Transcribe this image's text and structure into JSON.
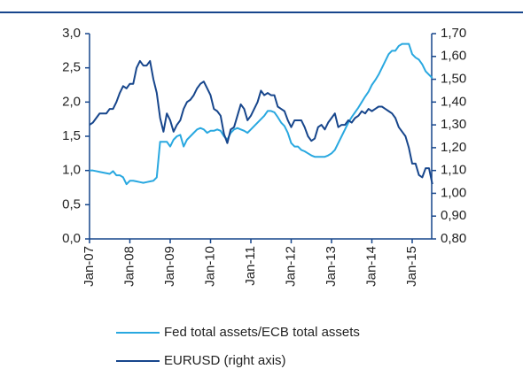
{
  "chart_data": {
    "type": "line",
    "categories": [
      "Jan-07",
      null,
      null,
      null,
      null,
      null,
      null,
      null,
      null,
      null,
      null,
      null,
      "Jan-08",
      null,
      null,
      null,
      null,
      null,
      null,
      null,
      null,
      null,
      null,
      null,
      "Jan-09",
      null,
      null,
      null,
      null,
      null,
      null,
      null,
      null,
      null,
      null,
      null,
      "Jan-10",
      null,
      null,
      null,
      null,
      null,
      null,
      null,
      null,
      null,
      null,
      null,
      "Jan-11",
      null,
      null,
      null,
      null,
      null,
      null,
      null,
      null,
      null,
      null,
      null,
      "Jan-12",
      null,
      null,
      null,
      null,
      null,
      null,
      null,
      null,
      null,
      null,
      null,
      "Jan-13",
      null,
      null,
      null,
      null,
      null,
      null,
      null,
      null,
      null,
      null,
      null,
      "Jan-14",
      null,
      null,
      null,
      null,
      null,
      null,
      null,
      null,
      null,
      null,
      null,
      "Jan-15",
      null,
      null,
      null,
      null,
      null,
      null
    ],
    "series": [
      {
        "name": "Fed total assets/ECB total assets",
        "color": "#29a8e0",
        "axis": "y",
        "values": [
          1.0,
          1.0,
          0.99,
          0.98,
          0.97,
          0.96,
          0.95,
          0.99,
          0.93,
          0.93,
          0.9,
          0.8,
          0.85,
          0.85,
          0.84,
          0.83,
          0.82,
          0.83,
          0.84,
          0.85,
          0.9,
          1.42,
          1.42,
          1.42,
          1.35,
          1.45,
          1.5,
          1.52,
          1.35,
          1.45,
          1.5,
          1.55,
          1.6,
          1.62,
          1.6,
          1.55,
          1.58,
          1.58,
          1.6,
          1.58,
          1.5,
          1.45,
          1.55,
          1.6,
          1.62,
          1.6,
          1.58,
          1.55,
          1.6,
          1.65,
          1.7,
          1.75,
          1.8,
          1.87,
          1.87,
          1.85,
          1.78,
          1.7,
          1.65,
          1.55,
          1.4,
          1.35,
          1.35,
          1.3,
          1.28,
          1.25,
          1.22,
          1.2,
          1.2,
          1.2,
          1.2,
          1.22,
          1.25,
          1.3,
          1.4,
          1.5,
          1.6,
          1.7,
          1.78,
          1.85,
          1.92,
          2.0,
          2.08,
          2.15,
          2.25,
          2.32,
          2.4,
          2.5,
          2.6,
          2.7,
          2.75,
          2.75,
          2.82,
          2.85,
          2.85,
          2.85,
          2.7,
          2.65,
          2.62,
          2.55,
          2.45,
          2.4,
          2.35
        ]
      },
      {
        "name": "EURUSD (right axis)",
        "color": "#17468c",
        "axis": "y2",
        "values": [
          1.3,
          1.31,
          1.33,
          1.35,
          1.35,
          1.35,
          1.37,
          1.37,
          1.4,
          1.44,
          1.47,
          1.46,
          1.48,
          1.48,
          1.55,
          1.58,
          1.56,
          1.56,
          1.58,
          1.5,
          1.44,
          1.33,
          1.27,
          1.35,
          1.32,
          1.27,
          1.3,
          1.32,
          1.37,
          1.4,
          1.41,
          1.43,
          1.46,
          1.48,
          1.49,
          1.46,
          1.43,
          1.37,
          1.36,
          1.34,
          1.26,
          1.22,
          1.28,
          1.29,
          1.34,
          1.39,
          1.37,
          1.32,
          1.34,
          1.37,
          1.4,
          1.45,
          1.43,
          1.44,
          1.43,
          1.43,
          1.38,
          1.37,
          1.36,
          1.32,
          1.29,
          1.32,
          1.32,
          1.32,
          1.29,
          1.25,
          1.23,
          1.24,
          1.29,
          1.3,
          1.28,
          1.31,
          1.33,
          1.35,
          1.29,
          1.3,
          1.3,
          1.32,
          1.31,
          1.33,
          1.34,
          1.36,
          1.35,
          1.37,
          1.36,
          1.37,
          1.38,
          1.38,
          1.37,
          1.36,
          1.35,
          1.33,
          1.29,
          1.27,
          1.25,
          1.2,
          1.13,
          1.13,
          1.08,
          1.07,
          1.11,
          1.11,
          1.04
        ]
      }
    ],
    "ylim": [
      0,
      3
    ],
    "yticks": [
      {
        "value": 0,
        "label": "0,0"
      },
      {
        "value": 0.5,
        "label": "0,5"
      },
      {
        "value": 1,
        "label": "1,0"
      },
      {
        "value": 1.5,
        "label": "1,5"
      },
      {
        "value": 2,
        "label": "2,0"
      },
      {
        "value": 2.5,
        "label": "2,5"
      },
      {
        "value": 3,
        "label": "3,0"
      }
    ],
    "y2lim": [
      0.8,
      1.7
    ],
    "y2ticks": [
      {
        "value": 0.8,
        "label": "0,80"
      },
      {
        "value": 0.9,
        "label": "0,90"
      },
      {
        "value": 1,
        "label": "1,00"
      },
      {
        "value": 1.1,
        "label": "1,10"
      },
      {
        "value": 1.2,
        "label": "1,20"
      },
      {
        "value": 1.3,
        "label": "1,30"
      },
      {
        "value": 1.4,
        "label": "1,40"
      },
      {
        "value": 1.5,
        "label": "1,50"
      },
      {
        "value": 1.6,
        "label": "1,60"
      },
      {
        "value": 1.7,
        "label": "1,70"
      }
    ],
    "grid": false
  }
}
